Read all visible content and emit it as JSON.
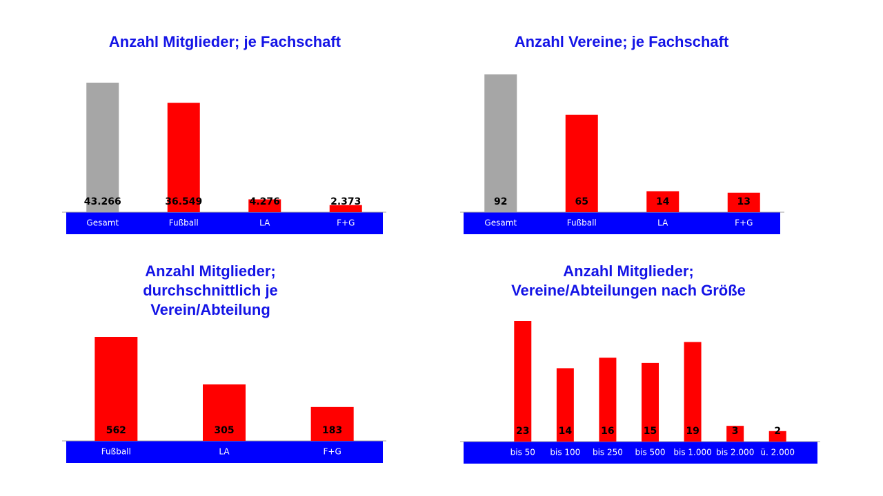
{
  "chart_data": [
    {
      "type": "bar",
      "title": [
        "Anzahl Mitglieder; je Fachschaft"
      ],
      "categories": [
        "Gesamt",
        "Fußball",
        "LA",
        "F+G"
      ],
      "values": [
        43266,
        36549,
        4276,
        2373
      ],
      "value_labels": [
        "43.266",
        "36.549",
        "4.276",
        "2.373"
      ],
      "colors": [
        "#a6a6a6",
        "#ff0000",
        "#ff0000",
        "#ff0000"
      ]
    },
    {
      "type": "bar",
      "title": [
        "Anzahl Vereine; je Fachschaft"
      ],
      "categories": [
        "Gesamt",
        "Fußball",
        "LA",
        "F+G"
      ],
      "values": [
        92,
        65,
        14,
        13
      ],
      "colors": [
        "#a6a6a6",
        "#ff0000",
        "#ff0000",
        "#ff0000"
      ]
    },
    {
      "type": "bar",
      "title": [
        "Anzahl Mitglieder;",
        "durchschnittlich je",
        "Verein/Abteilung"
      ],
      "categories": [
        "Fußball",
        "LA",
        "F+G"
      ],
      "values": [
        562,
        305,
        183
      ],
      "color": "#ff0000"
    },
    {
      "type": "bar",
      "title": [
        "Anzahl Mitglieder;",
        "Vereine/Abteilungen nach Größe"
      ],
      "categories": [
        "bis 50",
        "bis 100",
        "bis 250",
        "bis 500",
        "bis 1.000",
        "bis 2.000",
        "ü. 2.000"
      ],
      "values": [
        23,
        14,
        16,
        15,
        19,
        3,
        2
      ],
      "color": "#ff0000"
    }
  ]
}
